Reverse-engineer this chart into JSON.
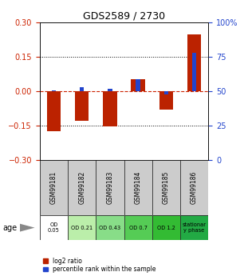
{
  "title": "GDS2589 / 2730",
  "samples": [
    "GSM99181",
    "GSM99182",
    "GSM99183",
    "GSM99184",
    "GSM99185",
    "GSM99186"
  ],
  "log2_ratio": [
    -0.175,
    -0.13,
    -0.155,
    0.05,
    -0.08,
    0.245
  ],
  "percentile_rank_pct": [
    50.5,
    53.0,
    51.5,
    58.5,
    47.5,
    78.0
  ],
  "ylim_left": [
    -0.3,
    0.3
  ],
  "ylim_right": [
    0,
    100
  ],
  "left_ticks": [
    -0.3,
    -0.15,
    0,
    0.15,
    0.3
  ],
  "right_ticks": [
    0,
    25,
    50,
    75,
    100
  ],
  "right_tick_labels": [
    "0",
    "25",
    "50",
    "75",
    "100%"
  ],
  "bar_color_red": "#bb2200",
  "bar_color_blue": "#2244cc",
  "zero_line_color": "#cc2200",
  "sample_bg_color": "#cccccc",
  "od_colors": [
    "#ffffff",
    "#bbeeaa",
    "#88dd88",
    "#55cc55",
    "#33bb33",
    "#22aa44"
  ],
  "od_labels": [
    "OD\n0.05",
    "OD 0.21",
    "OD 0.43",
    "OD 0.7",
    "OD 1.2",
    "stationar\ny phase"
  ],
  "age_label": "age",
  "legend_red": "log2 ratio",
  "legend_blue": "percentile rank within the sample",
  "bar_width": 0.5,
  "blue_bar_width": 0.15
}
